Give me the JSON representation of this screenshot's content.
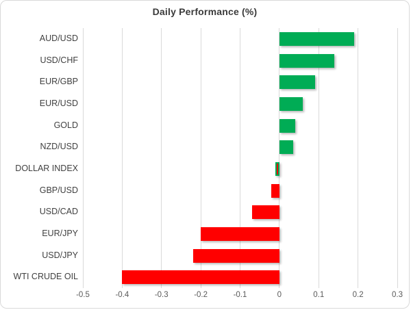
{
  "chart_data": {
    "type": "bar",
    "orientation": "horizontal",
    "title": "Daily Performance (%)",
    "categories": [
      "AUD/USD",
      "USD/CHF",
      "EUR/GBP",
      "EUR/USD",
      "GOLD",
      "NZD/USD",
      "DOLLAR INDEX",
      "GBP/USD",
      "USD/CAD",
      "EUR/JPY",
      "USD/JPY",
      "WTI CRUDE OIL"
    ],
    "values": [
      0.19,
      0.14,
      0.09,
      0.06,
      0.04,
      0.035,
      -0.01,
      -0.02,
      -0.07,
      -0.2,
      -0.22,
      -0.4
    ],
    "xlabel": "",
    "ylabel": "",
    "xlim": [
      -0.5,
      0.3
    ],
    "xticks": [
      -0.5,
      -0.4,
      -0.3,
      -0.2,
      -0.1,
      0,
      0.1,
      0.2,
      0.3
    ],
    "xtick_labels": [
      "-0.5",
      "-0.4",
      "-0.3",
      "-0.2",
      "-0.1",
      "0",
      "0.1",
      "0.2",
      "0.3"
    ],
    "grid": true,
    "legend": false,
    "positive_color": "#00AC55",
    "negative_color": "#FF0000",
    "gridline_color": "#D9D9D9",
    "outlined_categories": [
      "DOLLAR INDEX"
    ],
    "outline_color": "#00AC55"
  }
}
